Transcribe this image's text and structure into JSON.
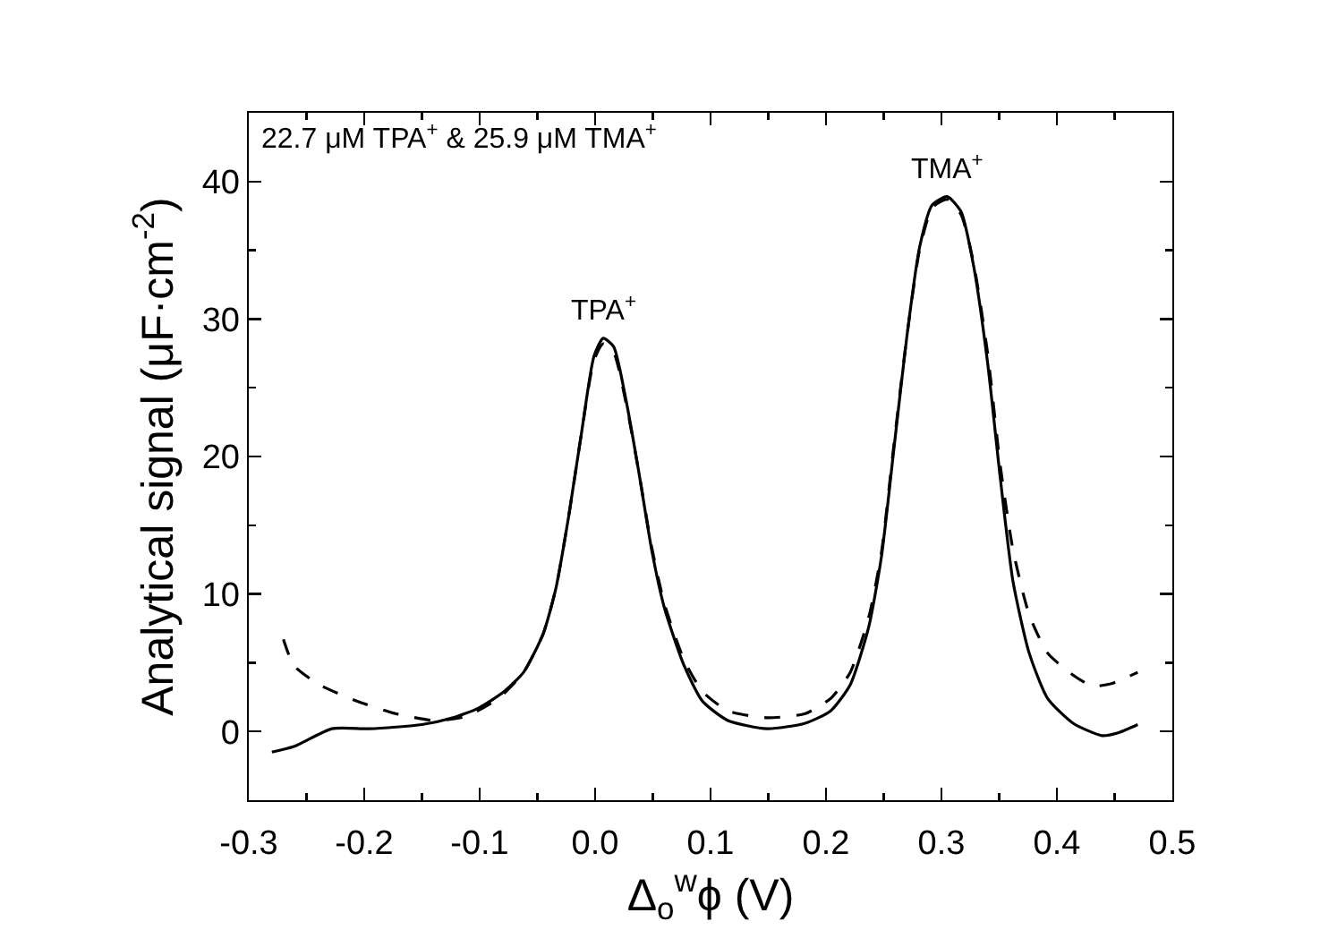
{
  "chart_data": {
    "type": "line",
    "xlabel": "Δ$_{o}$$^{w}$ϕ (V)",
    "ylabel": "Analytical signal (μF·cm$^{-2}$)",
    "xlim": [
      -0.3,
      0.5
    ],
    "ylim": [
      -5,
      45
    ],
    "xticks": [
      -0.3,
      {
        "value": -0.25,
        "label": null
      },
      -0.2,
      {
        "value": -0.15,
        "label": null
      },
      -0.1,
      {
        "value": -0.05,
        "label": null
      },
      {
        "value": 0,
        "label": "0.0"
      },
      {
        "value": 0.05,
        "label": null
      },
      0.1,
      {
        "value": 0.15,
        "label": null
      },
      0.2,
      {
        "value": 0.25,
        "label": null
      },
      0.3,
      {
        "value": 0.35,
        "label": null
      },
      0.4,
      {
        "value": 0.45,
        "label": null
      },
      0.5
    ],
    "yticks": [
      {
        "value": -5,
        "label": null
      },
      0,
      {
        "value": 5,
        "label": null
      },
      10,
      {
        "value": 15,
        "label": null
      },
      20,
      {
        "value": 25,
        "label": null
      },
      30,
      {
        "value": 35,
        "label": null
      },
      40,
      {
        "value": 45,
        "label": null
      }
    ],
    "grid": false,
    "marker": "none",
    "annotations": [
      "22.7 μM TPA$^{+}$ & 25.9 μM TMA$^{+}$",
      {
        "text": "TPA$^{+}$",
        "x": 0.007,
        "y": 28.6
      },
      {
        "text": "TMA$^{+}$",
        "x": 0.305,
        "y": 38.9
      }
    ],
    "series": [
      {
        "color": "#000000",
        "line_style": "solid",
        "x": [
          -0.28,
          -0.261,
          -0.228,
          -0.195,
          -0.15,
          -0.123,
          -0.101,
          -0.079,
          -0.062,
          -0.045,
          -0.034,
          -0.023,
          -0.012,
          -0.001,
          0.007,
          0.016,
          0.027,
          0.038,
          0.049,
          0.06,
          0.077,
          0.093,
          0.115,
          0.149,
          0.182,
          0.204,
          0.221,
          0.237,
          0.248,
          0.259,
          0.27,
          0.281,
          0.292,
          0.305,
          0.317,
          0.328,
          0.34,
          0.351,
          0.362,
          0.376,
          0.392,
          0.414,
          0.439,
          0.453,
          0.47
        ],
        "values": [
          -1.5,
          -1.1,
          0.2,
          0.2,
          0.5,
          1.0,
          1.7,
          2.9,
          4.3,
          7.1,
          10.4,
          15.6,
          21.6,
          27.3,
          28.6,
          28.0,
          24,
          18.8,
          13.2,
          9.0,
          4.8,
          2.2,
          0.8,
          0.2,
          0.6,
          1.5,
          3.4,
          7.6,
          12.7,
          20.7,
          28.7,
          35.2,
          38.3,
          38.9,
          37.8,
          33.8,
          26.8,
          18.4,
          10.9,
          5.7,
          2.4,
          0.6,
          -0.3,
          -0.1,
          0.5
        ]
      },
      {
        "color": "#000000",
        "line_style": "dashed",
        "x": [
          -0.27,
          -0.261,
          -0.239,
          -0.206,
          -0.173,
          -0.139,
          -0.112,
          -0.084,
          -0.062,
          -0.045,
          -0.034,
          -0.023,
          -0.012,
          -0.001,
          0.007,
          0.016,
          0.027,
          0.038,
          0.049,
          0.06,
          0.077,
          0.093,
          0.115,
          0.149,
          0.182,
          0.204,
          0.221,
          0.237,
          0.248,
          0.259,
          0.27,
          0.281,
          0.292,
          0.305,
          0.317,
          0.328,
          0.34,
          0.351,
          0.362,
          0.376,
          0.392,
          0.414,
          0.431,
          0.448,
          0.47
        ],
        "values": [
          6.7,
          4.8,
          3.4,
          2.2,
          1.3,
          0.8,
          1.1,
          2.4,
          4.3,
          7.1,
          10.4,
          15.6,
          21.6,
          27.0,
          28.2,
          27.6,
          23.8,
          18.8,
          13.4,
          9.3,
          5.2,
          2.9,
          1.5,
          1.0,
          1.3,
          2.4,
          4.3,
          8.3,
          13,
          21,
          28.7,
          35,
          38.1,
          38.7,
          37.6,
          34,
          27.5,
          19.3,
          13.2,
          8.5,
          5.7,
          4.1,
          3.3,
          3.5,
          4.3
        ]
      }
    ]
  }
}
